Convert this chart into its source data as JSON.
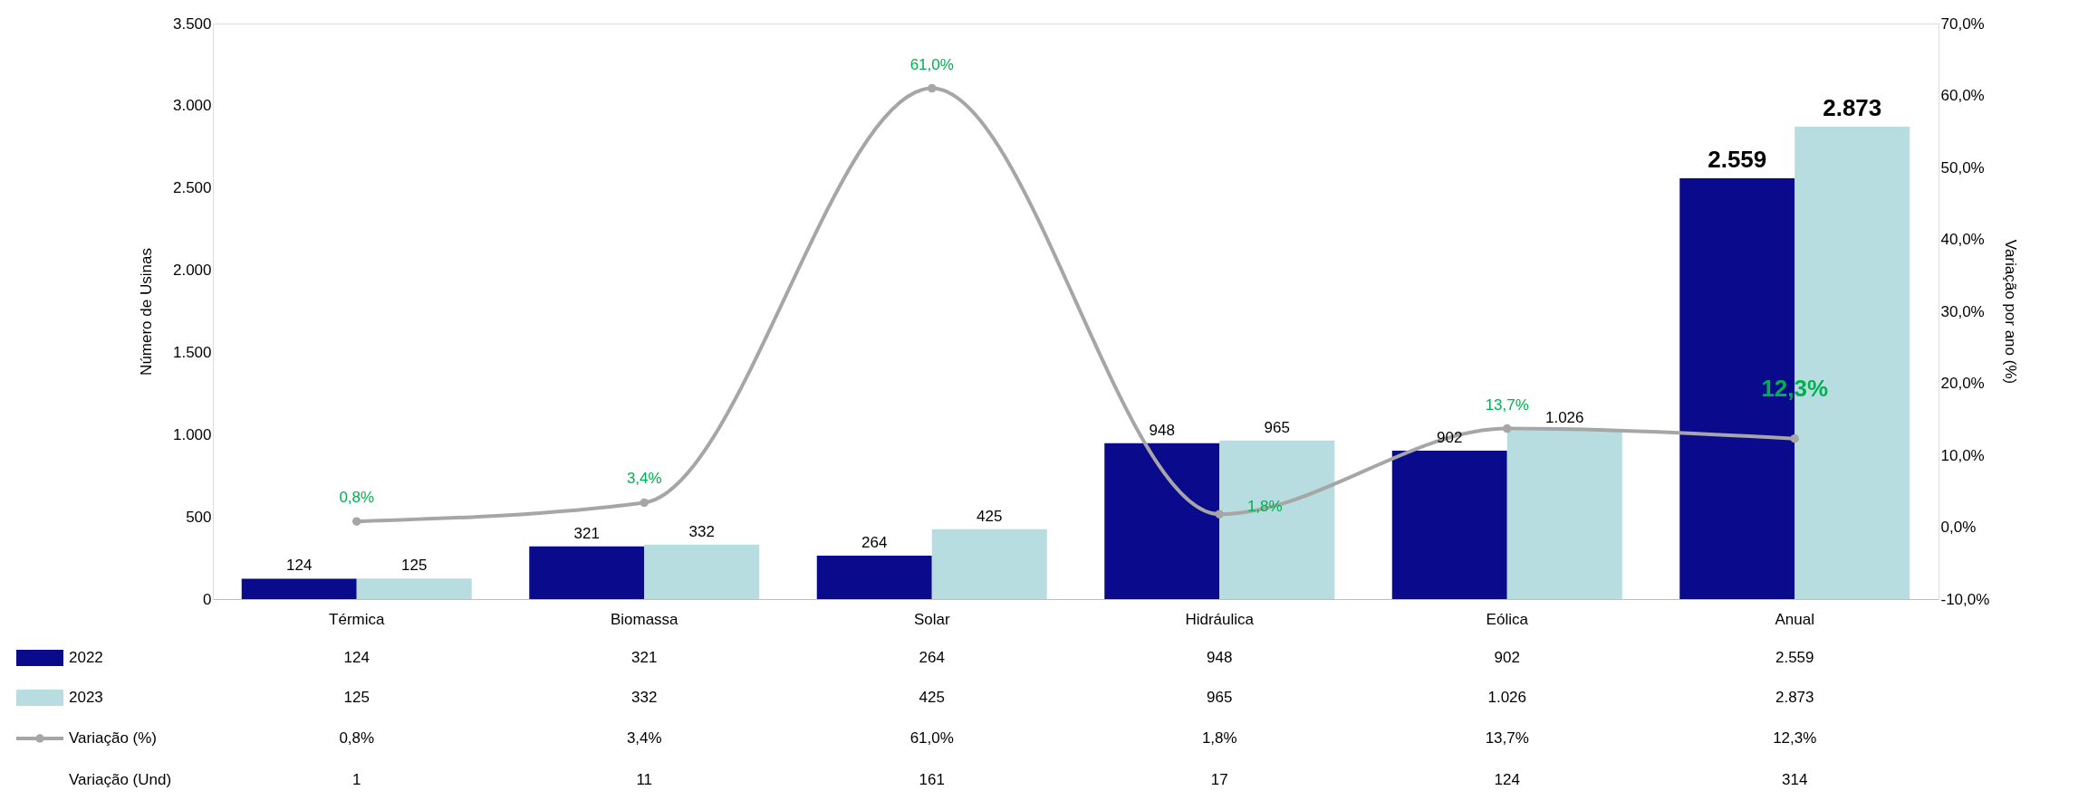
{
  "chart_data": {
    "type": "bar",
    "categories": [
      "Térmica",
      "Biomassa",
      "Solar",
      "Hidráulica",
      "Eólica",
      "Anual"
    ],
    "ylabel": "Número de Usinas",
    "y2label": "Variação por ano (%)",
    "ylim": [
      0,
      3500
    ],
    "yticks": [
      0,
      {
        "value": 500,
        "label": "500"
      },
      {
        "value": 1000,
        "label": "1.000"
      },
      {
        "value": 1500,
        "label": "1.500"
      },
      {
        "value": 2000,
        "label": "2.000"
      },
      {
        "value": 2500,
        "label": "2.500"
      },
      {
        "value": 3000,
        "label": "3.000"
      },
      {
        "value": 3500,
        "label": "3.500"
      }
    ],
    "y2lim": [
      -10,
      70
    ],
    "y2ticks": [
      {
        "value": -10,
        "label": "-10,0%"
      },
      {
        "value": 0,
        "label": "0,0%"
      },
      {
        "value": 10,
        "label": "10,0%"
      },
      {
        "value": 20,
        "label": "20,0%"
      },
      {
        "value": 30,
        "label": "30,0%"
      },
      {
        "value": 40,
        "label": "40,0%"
      },
      {
        "value": 50,
        "label": "50,0%"
      },
      {
        "value": 60,
        "label": "60,0%"
      },
      {
        "value": 70,
        "label": "70,0%"
      }
    ],
    "series": [
      {
        "name": "2022",
        "color": "#0a0a8c",
        "values": [
          124,
          321,
          264,
          948,
          902,
          2559
        ],
        "value_labels": [
          "124",
          "321",
          "264",
          "948",
          "902",
          "2.559"
        ]
      },
      {
        "name": "2023",
        "color": "#b7dde0",
        "values": [
          125,
          332,
          425,
          965,
          1026,
          2873
        ],
        "value_labels": [
          "125",
          "332",
          "425",
          "965",
          "1.026",
          "2.873"
        ]
      },
      {
        "name": "Variação (%)",
        "type": "line",
        "axis": "y2",
        "color": "#a6a6a6",
        "marker": "circle",
        "line_style": "solid",
        "values": [
          0.8,
          3.4,
          61.0,
          1.8,
          13.7,
          12.3
        ],
        "value_labels": [
          "0,8%",
          "3,4%",
          "61,0%",
          "1,8%",
          "13,7%",
          "12,3%"
        ]
      }
    ],
    "annotations": [
      "Variação (Und)",
      "1",
      "11",
      "161",
      "17",
      "124",
      "314"
    ],
    "grid": false,
    "legend": "bottom left"
  }
}
